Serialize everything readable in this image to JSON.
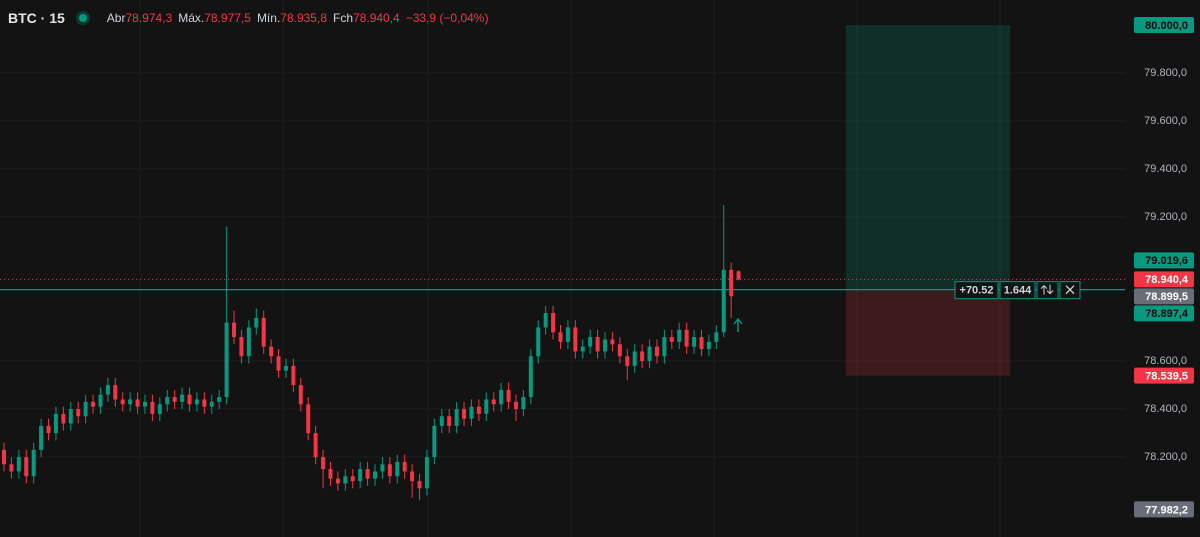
{
  "header": {
    "symbol": "BTC · 15",
    "open_label": "Abr",
    "open": "78.974,3",
    "high_label": "Máx.",
    "high": "78.977,5",
    "low_label": "Mín.",
    "low": "78.935,8",
    "close_label": "Fch",
    "close": "78.940,4",
    "change": "−33,9 (−0,04%)"
  },
  "chart_data": {
    "type": "candlestick",
    "open": [
      78230,
      78170,
      78140,
      78200,
      78120,
      78230,
      78330,
      78300,
      78380,
      78340,
      78400,
      78370,
      78430,
      78410,
      78460,
      78500,
      78440,
      78420,
      78440,
      78410,
      78430,
      78380,
      78420,
      78450,
      78430,
      78460,
      78420,
      78440,
      78410,
      78430,
      78450,
      78760,
      78700,
      78620,
      78740,
      78780,
      78660,
      78620,
      78560,
      78580,
      78500,
      78420,
      78300,
      78200,
      78150,
      78110,
      78090,
      78120,
      78100,
      78150,
      78110,
      78140,
      78170,
      78120,
      78180,
      78140,
      78100,
      78070,
      78200,
      78330,
      78370,
      78330,
      78400,
      78360,
      78410,
      78380,
      78440,
      78420,
      78480,
      78430,
      78400,
      78450,
      78620,
      78740,
      78800,
      78720,
      78680,
      78740,
      78640,
      78660,
      78700,
      78640,
      78690,
      78670,
      78620,
      78580,
      78640,
      78600,
      78660,
      78620,
      78700,
      78680,
      78730,
      78660,
      78700,
      78650,
      78680,
      78720,
      78980,
      78974
    ],
    "high": [
      78260,
      78200,
      78230,
      78230,
      78260,
      78360,
      78360,
      78410,
      78410,
      78430,
      78430,
      78460,
      78460,
      78490,
      78530,
      78530,
      78470,
      78470,
      78470,
      78460,
      78460,
      78450,
      78480,
      78480,
      78490,
      78490,
      78470,
      78470,
      78460,
      78480,
      79160,
      78810,
      78730,
      78770,
      78820,
      78810,
      78690,
      78650,
      78610,
      78610,
      78530,
      78450,
      78330,
      78230,
      78180,
      78140,
      78150,
      78150,
      78180,
      78180,
      78170,
      78200,
      78200,
      78210,
      78210,
      78170,
      78130,
      78230,
      78360,
      78400,
      78400,
      78430,
      78430,
      78440,
      78440,
      78470,
      78470,
      78510,
      78510,
      78460,
      78480,
      78650,
      78770,
      78830,
      78830,
      78750,
      78770,
      78770,
      78690,
      78730,
      78730,
      78720,
      78720,
      78700,
      78650,
      78670,
      78670,
      78690,
      78690,
      78730,
      78730,
      78760,
      78760,
      78730,
      78730,
      78710,
      78750,
      79250,
      79010,
      78978
    ],
    "low": [
      78140,
      78110,
      78110,
      78090,
      78090,
      78200,
      78270,
      78270,
      78310,
      78310,
      78340,
      78340,
      78380,
      78380,
      78430,
      78410,
      78390,
      78390,
      78380,
      78380,
      78350,
      78350,
      78390,
      78400,
      78400,
      78390,
      78390,
      78380,
      78380,
      78400,
      78420,
      78670,
      78590,
      78590,
      78710,
      78630,
      78590,
      78530,
      78530,
      78470,
      78390,
      78270,
      78170,
      78070,
      78080,
      78060,
      78060,
      78070,
      78070,
      78080,
      78080,
      78110,
      78090,
      78090,
      78110,
      78030,
      78020,
      78040,
      78170,
      78300,
      78300,
      78300,
      78330,
      78330,
      78350,
      78350,
      78390,
      78390,
      78400,
      78350,
      78370,
      78420,
      78590,
      78710,
      78690,
      78650,
      78650,
      78610,
      78610,
      78630,
      78610,
      78610,
      78640,
      78590,
      78520,
      78550,
      78570,
      78570,
      78590,
      78590,
      78650,
      78650,
      78630,
      78630,
      78620,
      78620,
      78650,
      78700,
      78780,
      78936
    ],
    "close": [
      78170,
      78140,
      78200,
      78120,
      78230,
      78330,
      78300,
      78380,
      78340,
      78400,
      78370,
      78430,
      78410,
      78460,
      78500,
      78440,
      78420,
      78440,
      78410,
      78430,
      78380,
      78420,
      78450,
      78430,
      78460,
      78420,
      78440,
      78410,
      78430,
      78450,
      78760,
      78700,
      78620,
      78740,
      78780,
      78660,
      78620,
      78560,
      78580,
      78500,
      78420,
      78300,
      78200,
      78150,
      78110,
      78090,
      78120,
      78100,
      78150,
      78110,
      78140,
      78170,
      78120,
      78180,
      78140,
      78100,
      78070,
      78200,
      78330,
      78370,
      78330,
      78400,
      78360,
      78410,
      78380,
      78440,
      78420,
      78480,
      78430,
      78400,
      78450,
      78620,
      78740,
      78800,
      78720,
      78680,
      78740,
      78640,
      78660,
      78700,
      78640,
      78690,
      78670,
      78620,
      78580,
      78640,
      78600,
      78660,
      78620,
      78700,
      78680,
      78730,
      78660,
      78700,
      78650,
      78680,
      78720,
      78980,
      78870,
      78940
    ],
    "up_color": "#089981",
    "down_color": "#f23645",
    "ylim": [
      77867,
      80104
    ],
    "yticks": [
      {
        "value": 78200,
        "label": "78.200,0"
      },
      {
        "value": 78400,
        "label": "78.400,0"
      },
      {
        "value": 78600,
        "label": "78.600,0"
      },
      {
        "value": 79200,
        "label": "79.200,0"
      },
      {
        "value": 79400,
        "label": "79.400,0"
      },
      {
        "value": 79600,
        "label": "79.600,0"
      },
      {
        "value": 79800,
        "label": "79.800,0"
      }
    ],
    "grid": true,
    "price_badges": [
      {
        "value": 79019.6,
        "label": "79.019,6",
        "color": "#089981"
      },
      {
        "value": 78940.4,
        "label": "78.940,4",
        "color": "#f23645"
      },
      {
        "value": 78899.5,
        "label": "78.899,5",
        "color": "#6a6d78"
      },
      {
        "value": 77982.2,
        "label": "77.982,2",
        "color": "#6a6d78"
      }
    ],
    "position": {
      "target": {
        "value": 80000,
        "label": "80.000,0"
      },
      "entry": {
        "value": 78897.4,
        "label": "78.897,4"
      },
      "stop": {
        "value": 78539.5,
        "label": "78.539,5"
      },
      "profit_color": "#089981",
      "loss_color": "#f23645",
      "pnl": "+70.52",
      "quantity": "1.644"
    }
  }
}
